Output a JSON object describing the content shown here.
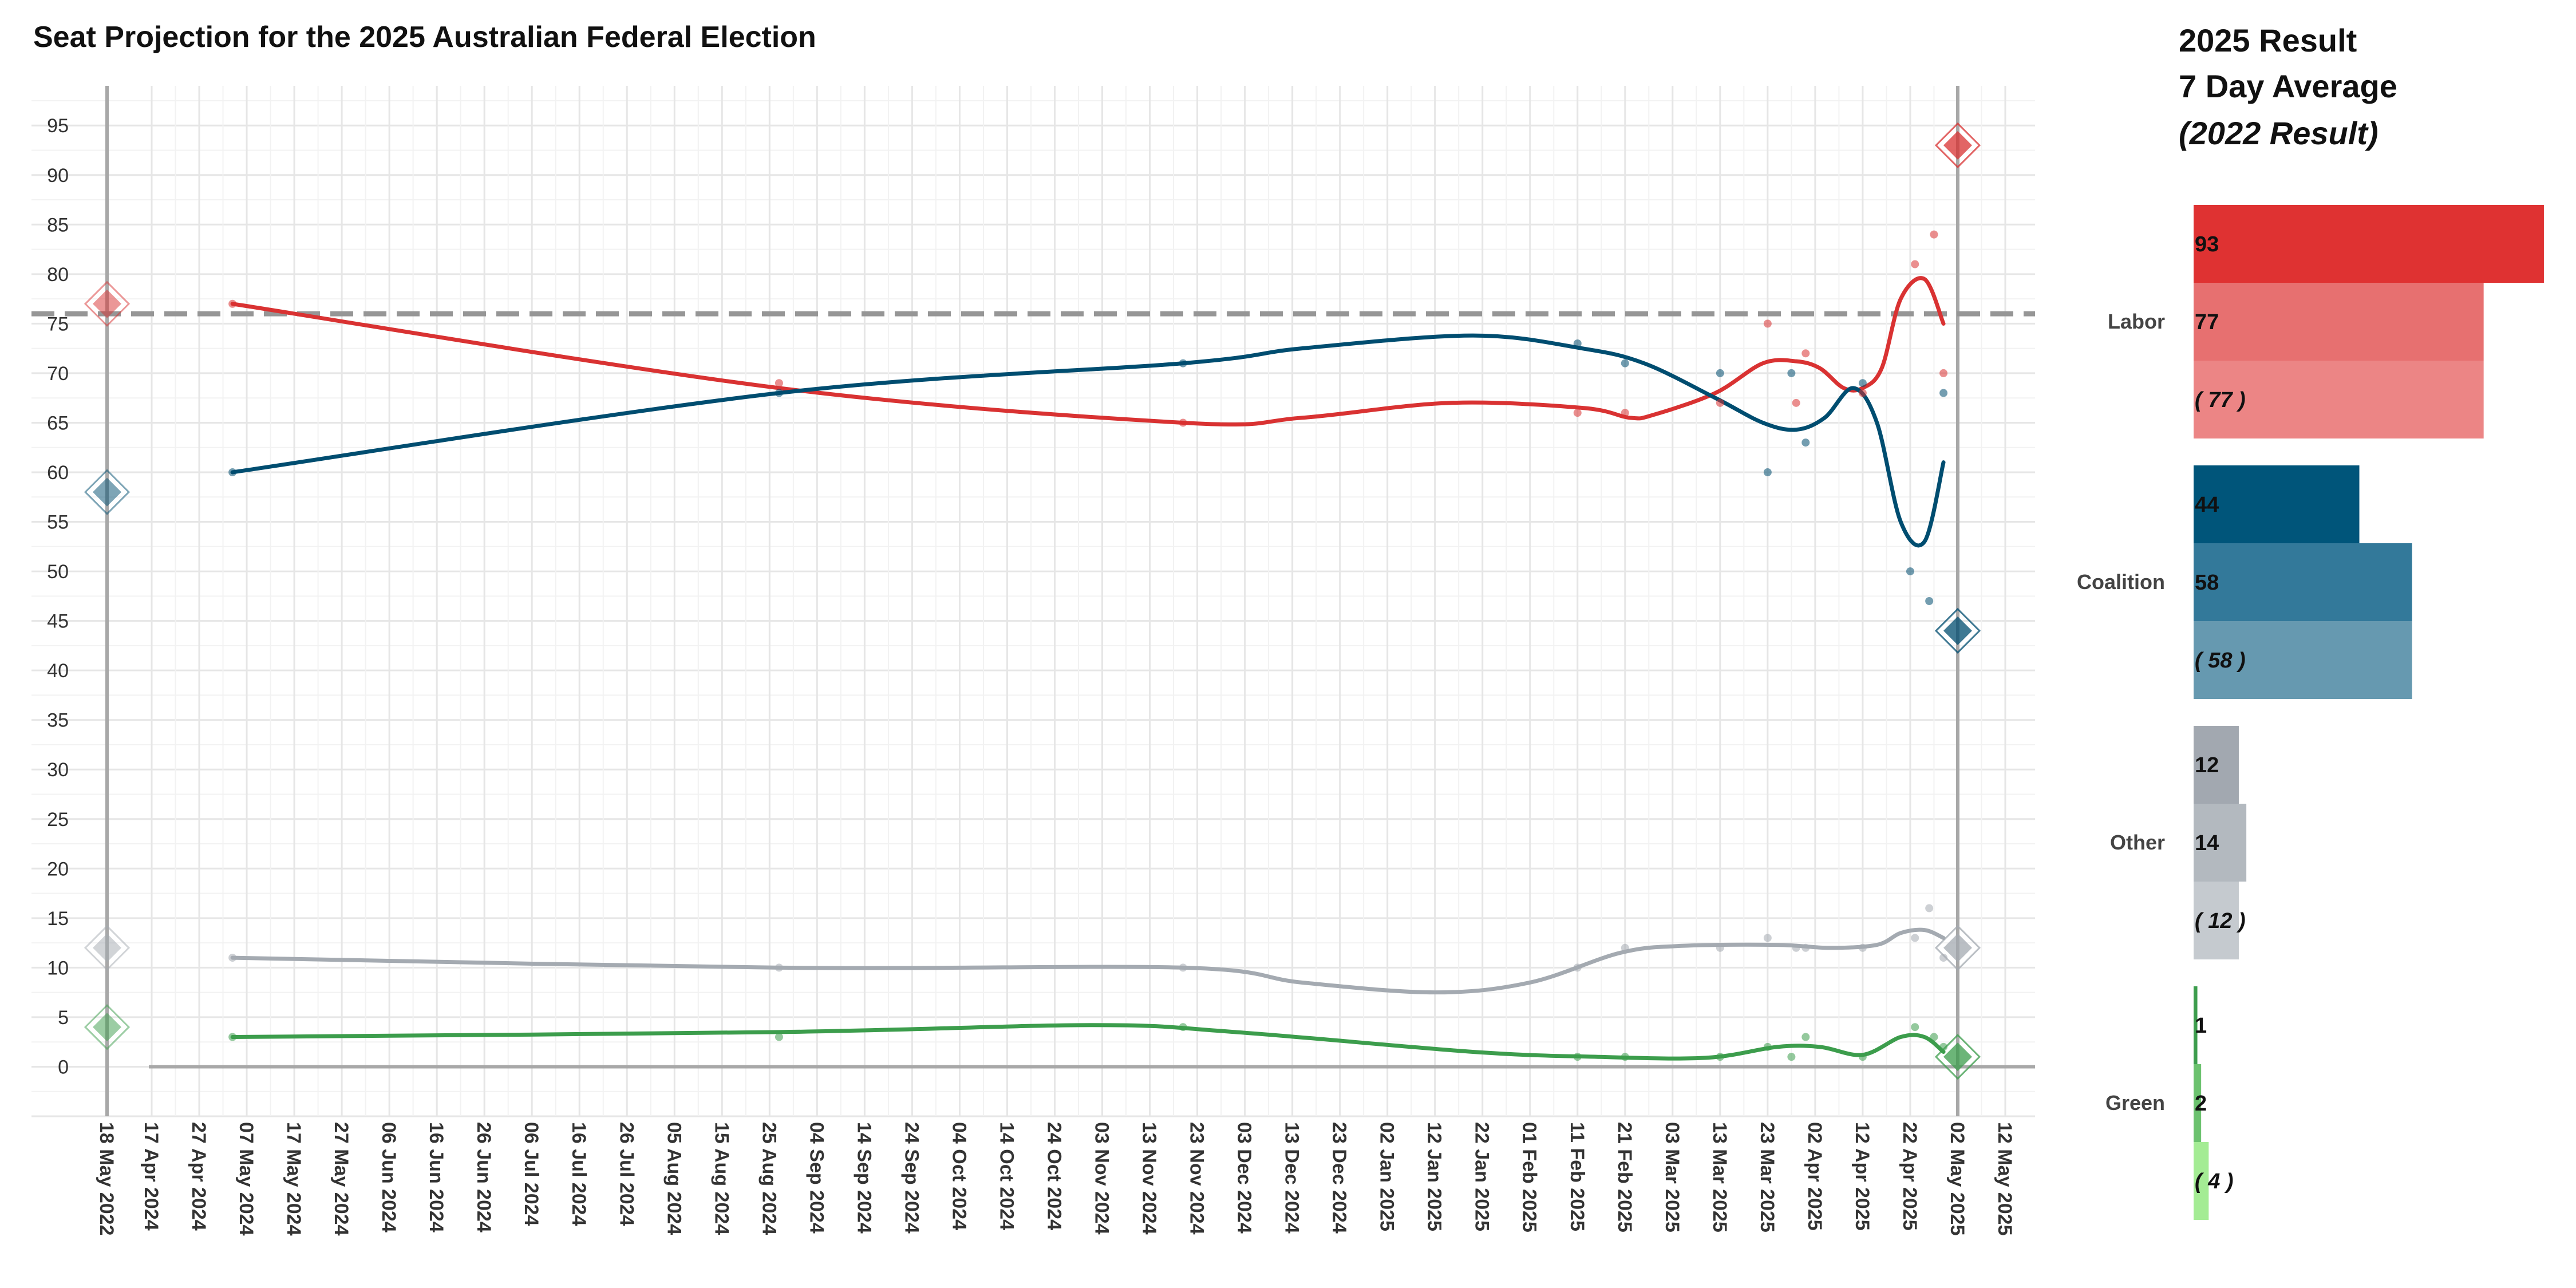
{
  "chart_data": {
    "type": "line",
    "title": "Seat Projection for the 2025 Australian Federal Election",
    "xlabel": "",
    "ylabel": "",
    "ylim": [
      -5,
      99
    ],
    "yticks": [
      0,
      5,
      10,
      15,
      20,
      25,
      30,
      35,
      40,
      45,
      50,
      55,
      60,
      65,
      70,
      75,
      80,
      85,
      90,
      95
    ],
    "majority_line": 76,
    "x_reference_label": "18 May 2022",
    "x_tick_labels": [
      "17 Apr 2024",
      "27 Apr 2024",
      "07 May 2024",
      "17 May 2024",
      "27 May 2024",
      "06 Jun 2024",
      "16 Jun 2024",
      "26 Jun 2024",
      "06 Jul 2024",
      "16 Jul 2024",
      "26 Jul 2024",
      "05 Aug 2024",
      "15 Aug 2024",
      "25 Aug 2024",
      "04 Sep 2024",
      "14 Sep 2024",
      "24 Sep 2024",
      "04 Oct 2024",
      "14 Oct 2024",
      "24 Oct 2024",
      "03 Nov 2024",
      "13 Nov 2024",
      "23 Nov 2024",
      "03 Dec 2024",
      "13 Dec 2024",
      "23 Dec 2024",
      "02 Jan 2025",
      "12 Jan 2025",
      "22 Jan 2025",
      "01 Feb 2025",
      "11 Feb 2025",
      "21 Feb 2025",
      "03 Mar 2025",
      "13 Mar 2025",
      "23 Mar 2025",
      "02 Apr 2025",
      "12 Apr 2025",
      "22 Apr 2025",
      "02 May 2025",
      "12 May 2025"
    ],
    "election_date_label": "02 May 2025",
    "series": [
      {
        "name": "Labor",
        "color": "#d93232",
        "result_2022": 77,
        "result_2025": 93,
        "line": [
          [
            "2024-05-04",
            77
          ],
          [
            "2024-08-27",
            68.5
          ],
          [
            "2024-11-20",
            65
          ],
          [
            "2024-12-15",
            65.5
          ],
          [
            "2025-01-15",
            67
          ],
          [
            "2025-02-12",
            66.5
          ],
          [
            "2025-02-22",
            65.5
          ],
          [
            "2025-02-27",
            65.8
          ],
          [
            "2025-03-12",
            68
          ],
          [
            "2025-03-22",
            71
          ],
          [
            "2025-03-29",
            71.2
          ],
          [
            "2025-04-03",
            70.5
          ],
          [
            "2025-04-08",
            68.5
          ],
          [
            "2025-04-12",
            68.5
          ],
          [
            "2025-04-16",
            70.5
          ],
          [
            "2025-04-20",
            77.5
          ],
          [
            "2025-04-25",
            79.5
          ],
          [
            "2025-04-29",
            75
          ]
        ],
        "points": [
          [
            "2024-05-04",
            77
          ],
          [
            "2024-08-27",
            69
          ],
          [
            "2024-11-20",
            65
          ],
          [
            "2025-02-11",
            66
          ],
          [
            "2025-02-21",
            66
          ],
          [
            "2025-03-13",
            67
          ],
          [
            "2025-03-23",
            75
          ],
          [
            "2025-03-29",
            67
          ],
          [
            "2025-03-31",
            72
          ],
          [
            "2025-04-12",
            68
          ],
          [
            "2025-04-23",
            81
          ],
          [
            "2025-04-27",
            84
          ],
          [
            "2025-04-29",
            70
          ]
        ]
      },
      {
        "name": "Coalition",
        "color": "#004d70",
        "result_2022": 58,
        "result_2025": 44,
        "line": [
          [
            "2024-05-04",
            60
          ],
          [
            "2024-08-27",
            68
          ],
          [
            "2024-11-20",
            71
          ],
          [
            "2024-12-15",
            72.5
          ],
          [
            "2025-01-20",
            73.8
          ],
          [
            "2025-02-12",
            72.5
          ],
          [
            "2025-02-25",
            71
          ],
          [
            "2025-03-12",
            67.5
          ],
          [
            "2025-03-22",
            65
          ],
          [
            "2025-03-29",
            64.3
          ],
          [
            "2025-04-04",
            65.5
          ],
          [
            "2025-04-10",
            68.5
          ],
          [
            "2025-04-15",
            65
          ],
          [
            "2025-04-20",
            55
          ],
          [
            "2025-04-25",
            53
          ],
          [
            "2025-04-29",
            61
          ]
        ],
        "points": [
          [
            "2024-05-04",
            60
          ],
          [
            "2024-08-27",
            68
          ],
          [
            "2024-11-20",
            71
          ],
          [
            "2025-02-11",
            73
          ],
          [
            "2025-02-21",
            71
          ],
          [
            "2025-03-13",
            70
          ],
          [
            "2025-03-23",
            60
          ],
          [
            "2025-03-28",
            70
          ],
          [
            "2025-03-31",
            63
          ],
          [
            "2025-04-12",
            69
          ],
          [
            "2025-04-22",
            50
          ],
          [
            "2025-04-26",
            47
          ],
          [
            "2025-04-29",
            68
          ]
        ]
      },
      {
        "name": "Other",
        "color": "#a4aab1",
        "result_2022": 12,
        "result_2025": 12,
        "line": [
          [
            "2024-05-04",
            11
          ],
          [
            "2024-08-27",
            10
          ],
          [
            "2024-11-20",
            10
          ],
          [
            "2024-12-15",
            8.5
          ],
          [
            "2025-01-12",
            7.5
          ],
          [
            "2025-02-01",
            8.5
          ],
          [
            "2025-02-20",
            11.5
          ],
          [
            "2025-03-05",
            12.2
          ],
          [
            "2025-03-25",
            12.3
          ],
          [
            "2025-04-05",
            12
          ],
          [
            "2025-04-15",
            12.3
          ],
          [
            "2025-04-20",
            13.5
          ],
          [
            "2025-04-25",
            13.8
          ],
          [
            "2025-04-29",
            13
          ]
        ],
        "points": [
          [
            "2024-05-04",
            11
          ],
          [
            "2024-08-27",
            10
          ],
          [
            "2024-11-20",
            10
          ],
          [
            "2025-02-11",
            10
          ],
          [
            "2025-02-21",
            12
          ],
          [
            "2025-03-13",
            12
          ],
          [
            "2025-03-23",
            13
          ],
          [
            "2025-03-29",
            12
          ],
          [
            "2025-03-31",
            12
          ],
          [
            "2025-04-12",
            12
          ],
          [
            "2025-04-23",
            13
          ],
          [
            "2025-04-26",
            16
          ],
          [
            "2025-04-29",
            11
          ]
        ]
      },
      {
        "name": "Green",
        "color": "#3c9d4c",
        "result_2022": 4,
        "result_2025": 1,
        "line": [
          [
            "2024-05-04",
            3
          ],
          [
            "2024-08-27",
            3.5
          ],
          [
            "2024-11-01",
            4.2
          ],
          [
            "2024-12-01",
            3.5
          ],
          [
            "2025-01-20",
            1.5
          ],
          [
            "2025-02-15",
            1
          ],
          [
            "2025-03-10",
            0.9
          ],
          [
            "2025-03-25",
            2
          ],
          [
            "2025-04-03",
            2
          ],
          [
            "2025-04-12",
            1.2
          ],
          [
            "2025-04-20",
            3
          ],
          [
            "2025-04-25",
            3
          ],
          [
            "2025-04-29",
            1.5
          ]
        ],
        "points": [
          [
            "2024-05-04",
            3
          ],
          [
            "2024-08-27",
            3
          ],
          [
            "2024-11-20",
            4
          ],
          [
            "2025-02-11",
            1
          ],
          [
            "2025-02-21",
            1
          ],
          [
            "2025-03-13",
            1
          ],
          [
            "2025-03-23",
            2
          ],
          [
            "2025-03-28",
            1
          ],
          [
            "2025-03-31",
            3
          ],
          [
            "2025-04-12",
            1
          ],
          [
            "2025-04-23",
            4
          ],
          [
            "2025-04-27",
            3
          ],
          [
            "2025-04-29",
            2
          ]
        ]
      }
    ],
    "panel": {
      "title_lines": [
        "2025 Result",
        "7 Day Average",
        "(2022 Result)"
      ],
      "groups": [
        {
          "party": "Labor",
          "label": "Labor",
          "bars": [
            {
              "value": 93,
              "label": "93",
              "color": "#df3232"
            },
            {
              "value": 77,
              "label": "77",
              "color": "#e77070"
            },
            {
              "value": 77,
              "label": "( 77 )",
              "color": "#ec8585"
            }
          ]
        },
        {
          "party": "Coalition",
          "label": "Coalition",
          "bars": [
            {
              "value": 44,
              "label": "44",
              "color": "#00557a"
            },
            {
              "value": 58,
              "label": "58",
              "color": "#33799a"
            },
            {
              "value": 58,
              "label": "( 58 )",
              "color": "#6699b0"
            }
          ]
        },
        {
          "party": "Other",
          "label": "Other",
          "bars": [
            {
              "value": 12,
              "label": "12",
              "color": "#a2a8b0"
            },
            {
              "value": 14,
              "label": "14",
              "color": "#b3b9bf"
            },
            {
              "value": 12,
              "label": "( 12 )",
              "color": "#c5cacf"
            }
          ]
        },
        {
          "party": "Green",
          "label": "Green",
          "bars": [
            {
              "value": 1,
              "label": "1",
              "color": "#3d9d4d"
            },
            {
              "value": 2,
              "label": "2",
              "color": "#6cc26f"
            },
            {
              "value": 4,
              "label": "( 4 )",
              "color": "#a4ec94"
            }
          ]
        }
      ]
    }
  }
}
